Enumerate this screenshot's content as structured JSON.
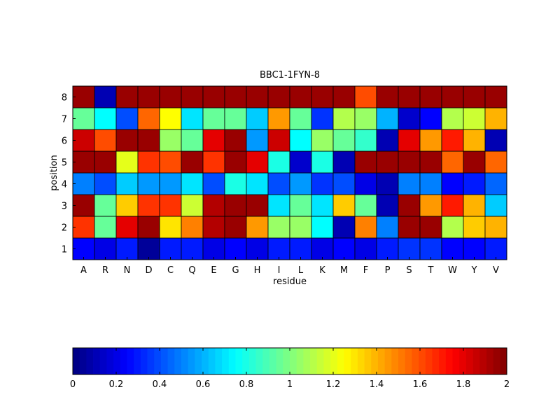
{
  "chart_data": [
    {
      "type": "heatmap",
      "title": "BBC1-1FYN-8",
      "xlabel": "residue",
      "ylabel": "position",
      "x_categories": [
        "A",
        "R",
        "N",
        "D",
        "C",
        "Q",
        "E",
        "G",
        "H",
        "I",
        "L",
        "K",
        "M",
        "F",
        "P",
        "S",
        "T",
        "W",
        "Y",
        "V"
      ],
      "y_categories": [
        "1",
        "2",
        "3",
        "4",
        "5",
        "6",
        "7",
        "8"
      ],
      "colormap": "jet",
      "clim": [
        0,
        2
      ],
      "grid": true,
      "rows": [
        {
          "position": "1",
          "values": [
            0.25,
            0.2,
            0.3,
            0.05,
            0.3,
            0.3,
            0.2,
            0.25,
            0.2,
            0.3,
            0.3,
            0.2,
            0.25,
            0.2,
            0.3,
            0.35,
            0.35,
            0.25,
            0.25,
            0.3
          ]
        },
        {
          "position": "2",
          "values": [
            1.65,
            0.95,
            1.8,
            1.95,
            1.3,
            1.5,
            1.9,
            1.95,
            1.45,
            1.05,
            1.05,
            0.75,
            0.1,
            1.5,
            0.5,
            1.95,
            1.95,
            1.1,
            1.35,
            1.4
          ]
        },
        {
          "position": "3",
          "values": [
            1.95,
            0.95,
            1.35,
            1.65,
            1.65,
            1.15,
            1.9,
            1.95,
            1.95,
            0.7,
            0.95,
            0.7,
            1.35,
            0.95,
            0.1,
            1.95,
            1.45,
            1.7,
            1.4,
            0.65
          ]
        },
        {
          "position": "4",
          "values": [
            0.5,
            0.4,
            0.65,
            0.55,
            0.55,
            0.7,
            0.4,
            0.8,
            0.7,
            0.4,
            0.55,
            0.35,
            0.4,
            0.2,
            0.1,
            0.5,
            0.5,
            0.25,
            0.3,
            0.45
          ]
        },
        {
          "position": "5",
          "values": [
            1.95,
            1.95,
            1.2,
            1.65,
            1.6,
            1.95,
            1.65,
            1.95,
            1.8,
            0.8,
            0.15,
            0.8,
            0.1,
            1.95,
            1.95,
            1.95,
            1.95,
            1.55,
            1.95,
            1.55
          ]
        },
        {
          "position": "6",
          "values": [
            1.85,
            1.6,
            1.95,
            1.95,
            1.05,
            0.95,
            1.8,
            1.95,
            0.55,
            1.85,
            0.75,
            1.05,
            0.95,
            0.85,
            0.1,
            1.8,
            1.45,
            1.7,
            1.4,
            0.1
          ]
        },
        {
          "position": "7",
          "values": [
            0.95,
            0.75,
            0.4,
            1.55,
            1.25,
            0.7,
            0.95,
            0.95,
            0.65,
            1.45,
            0.95,
            0.35,
            1.1,
            1.05,
            0.6,
            0.15,
            0.25,
            1.1,
            1.15,
            1.4
          ]
        },
        {
          "position": "8",
          "values": [
            1.95,
            0.1,
            1.95,
            1.95,
            1.95,
            1.95,
            1.95,
            1.95,
            1.95,
            1.95,
            1.95,
            1.95,
            1.95,
            1.6,
            1.95,
            1.95,
            1.95,
            1.95,
            1.95,
            1.95
          ]
        }
      ]
    },
    {
      "type": "colorbar",
      "range": [
        0,
        2
      ],
      "tick_labels": [
        "0",
        "0.2",
        "0.4",
        "0.6",
        "0.8",
        "1",
        "1.2",
        "1.4",
        "1.6",
        "1.8",
        "2"
      ],
      "tick_values": [
        0,
        0.2,
        0.4,
        0.6,
        0.8,
        1,
        1.2,
        1.4,
        1.6,
        1.8,
        2
      ],
      "colormap": "jet"
    }
  ]
}
